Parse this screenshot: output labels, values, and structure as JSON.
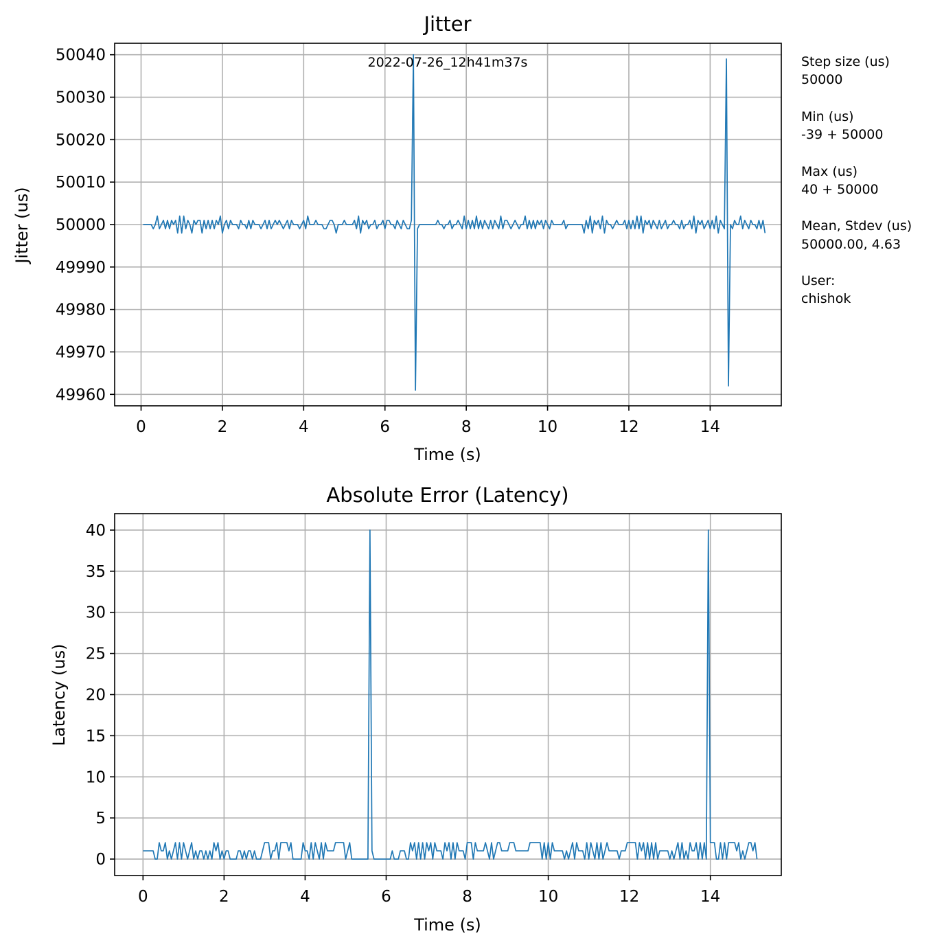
{
  "chart_data": [
    {
      "type": "line",
      "title": "Jitter",
      "xlabel": "Time (s)",
      "ylabel": "Jitter (us)",
      "xlim": [
        -0.65,
        15.75
      ],
      "ylim": [
        49957.3,
        50042.7
      ],
      "xticks": [
        "0",
        "2",
        "4",
        "6",
        "8",
        "10",
        "12",
        "14"
      ],
      "yticks": [
        "49960",
        "49970",
        "49980",
        "49990",
        "50000",
        "50010",
        "50020",
        "50030",
        "50040"
      ],
      "grid": true,
      "annotation": "2022-07-26_12h41m37s",
      "line_color": "#1f77b4",
      "series": [
        {
          "x_start": 0.05,
          "x_step": 0.05,
          "values": [
            50000,
            50000,
            50000,
            50000,
            50000,
            49999,
            50000,
            50002,
            49999,
            50000,
            50001,
            49999,
            50001,
            49999,
            50001,
            50000,
            50001,
            49998,
            50002,
            49998,
            50002,
            49999,
            50001,
            50000,
            49998,
            50001,
            50000,
            50001,
            50001,
            49998,
            50001,
            49999,
            50001,
            49999,
            50001,
            49999,
            50001,
            50000,
            50002,
            49998,
            50000,
            50001,
            49999,
            50001,
            50000,
            50000,
            50000,
            49999,
            50001,
            50000,
            50000,
            49999,
            50001,
            49999,
            50001,
            50000,
            50000,
            50000,
            49999,
            50000,
            50001,
            49999,
            50001,
            49999,
            50000,
            50001,
            50000,
            50001,
            50000,
            49999,
            50000,
            50001,
            49999,
            50001,
            50000,
            50000,
            50000,
            49999,
            50000,
            50001,
            49999,
            50002,
            50000,
            50000,
            50000,
            50001,
            50000,
            50000,
            50000,
            49999,
            49999,
            50000,
            50001,
            50001,
            50000,
            49998,
            50000,
            50000,
            50000,
            50001,
            50000,
            50000,
            50000,
            50000,
            50001,
            49999,
            50002,
            49998,
            50001,
            50000,
            50001,
            49999,
            50000,
            50000,
            50001,
            49999,
            50000,
            50000,
            50001,
            49999,
            50001,
            50001,
            50000,
            50000,
            49999,
            50001,
            50000,
            49999,
            50001,
            50000,
            49999,
            49999,
            50001,
            50040,
            49961,
            49999,
            50000,
            50000,
            50000,
            50000,
            50000,
            50000,
            50000,
            50000,
            50000,
            50001,
            50000,
            50000,
            49999,
            50000,
            50000,
            50001,
            49999,
            50000,
            50000,
            50001,
            50000,
            49999,
            50002,
            49999,
            50001,
            49999,
            50001,
            49999,
            50002,
            49999,
            50001,
            49999,
            50001,
            50000,
            49999,
            50001,
            49999,
            50001,
            50000,
            49999,
            50002,
            49999,
            50001,
            50001,
            50000,
            49999,
            50000,
            50001,
            50000,
            49999,
            50000,
            50000,
            50002,
            49999,
            50001,
            49999,
            50001,
            49999,
            50001,
            50000,
            50001,
            49999,
            50001,
            50000,
            49999,
            50001,
            50000,
            50000,
            50000,
            50000,
            50000,
            50001,
            49999,
            50000,
            50000,
            50000,
            50000,
            50000,
            50000,
            50000,
            50000,
            49998,
            50001,
            49999,
            50002,
            49998,
            50001,
            50000,
            50001,
            49999,
            50002,
            49998,
            50001,
            50000,
            50000,
            49999,
            50000,
            50001,
            50000,
            50000,
            50000,
            50001,
            49999,
            50001,
            49999,
            50001,
            49999,
            50002,
            49999,
            50002,
            49998,
            50001,
            50000,
            50001,
            49999,
            50001,
            50000,
            49999,
            50001,
            49999,
            50000,
            50001,
            49999,
            50000,
            50000,
            50001,
            50000,
            50000,
            49999,
            50001,
            49999,
            50000,
            50000,
            50001,
            49999,
            50002,
            49998,
            50001,
            50000,
            50001,
            49999,
            50000,
            50001,
            49999,
            50001,
            49999,
            50002,
            49998,
            50001,
            50000,
            49999,
            50039,
            49962,
            50000,
            49999,
            50001,
            50000,
            50000,
            50002,
            49999,
            50001,
            50000,
            49999,
            50001,
            50000,
            50000,
            49999,
            50001,
            49999,
            50001,
            49998
          ]
        }
      ]
    },
    {
      "type": "line",
      "title": "Absolute Error (Latency)",
      "xlabel": "Time (s)",
      "ylabel": "Latency (us)",
      "xlim": [
        -0.7,
        15.75
      ],
      "ylim": [
        -2,
        42
      ],
      "xticks": [
        "0",
        "2",
        "4",
        "6",
        "8",
        "10",
        "12",
        "14"
      ],
      "yticks": [
        "0",
        "5",
        "10",
        "15",
        "20",
        "25",
        "30",
        "35",
        "40"
      ],
      "grid": true,
      "line_color": "#1f77b4",
      "series": [
        {
          "x_start": 0.0,
          "x_step": 0.05,
          "values": [
            1,
            1,
            1,
            1,
            1,
            1,
            0,
            0,
            2,
            1,
            1,
            2,
            0,
            1,
            0,
            1,
            2,
            0,
            2,
            0,
            2,
            1,
            0,
            1,
            2,
            0,
            1,
            0,
            1,
            1,
            0,
            1,
            0,
            1,
            0,
            2,
            1,
            2,
            0,
            1,
            0,
            1,
            1,
            0,
            0,
            0,
            0,
            1,
            1,
            0,
            1,
            0,
            1,
            1,
            0,
            1,
            0,
            0,
            0,
            1,
            2,
            2,
            2,
            0,
            1,
            1,
            2,
            0,
            2,
            2,
            2,
            2,
            1,
            2,
            0,
            0,
            0,
            0,
            0,
            2,
            1,
            1,
            0,
            2,
            0,
            2,
            1,
            0,
            2,
            0,
            2,
            1,
            1,
            1,
            1,
            2,
            2,
            2,
            2,
            2,
            0,
            1,
            2,
            0,
            0,
            0,
            0,
            0,
            0,
            0,
            0,
            0,
            40,
            1,
            0,
            0,
            0,
            0,
            0,
            0,
            0,
            0,
            0,
            1,
            0,
            0,
            0,
            1,
            1,
            1,
            0,
            0,
            2,
            1,
            2,
            0,
            2,
            0,
            2,
            0,
            2,
            1,
            2,
            0,
            2,
            1,
            1,
            1,
            0,
            2,
            1,
            2,
            0,
            2,
            0,
            2,
            1,
            1,
            1,
            0,
            2,
            2,
            2,
            0,
            2,
            1,
            1,
            1,
            1,
            2,
            1,
            0,
            2,
            0,
            1,
            2,
            2,
            1,
            1,
            1,
            1,
            2,
            2,
            2,
            1,
            1,
            1,
            1,
            1,
            1,
            1,
            2,
            2,
            2,
            2,
            2,
            2,
            0,
            2,
            0,
            2,
            0,
            2,
            1,
            1,
            1,
            1,
            1,
            0,
            1,
            0,
            1,
            2,
            0,
            2,
            1,
            1,
            1,
            0,
            2,
            0,
            2,
            1,
            0,
            2,
            0,
            2,
            0,
            1,
            2,
            1,
            1,
            1,
            1,
            1,
            0,
            1,
            1,
            1,
            2,
            2,
            2,
            2,
            2,
            0,
            2,
            1,
            2,
            0,
            2,
            0,
            2,
            0,
            2,
            0,
            1,
            1,
            1,
            1,
            1,
            0,
            1,
            0,
            1,
            2,
            0,
            2,
            0,
            1,
            0,
            2,
            1,
            1,
            2,
            0,
            2,
            0,
            2,
            0,
            40,
            2,
            2,
            2,
            0,
            0,
            2,
            0,
            2,
            0,
            2,
            2,
            2,
            2,
            1,
            2,
            0,
            1,
            0,
            1,
            2,
            2,
            1,
            2,
            0
          ]
        }
      ]
    }
  ],
  "side_panel": {
    "step_label": "Step size (us)",
    "step_value": "50000",
    "min_label": "Min (us)",
    "min_value": "-39 + 50000",
    "max_label": "Max (us)",
    "max_value": "40 + 50000",
    "mean_label": "Mean, Stdev (us)",
    "mean_value": "50000.00, 4.63",
    "user_label": "User:",
    "user_value": "chishok"
  }
}
